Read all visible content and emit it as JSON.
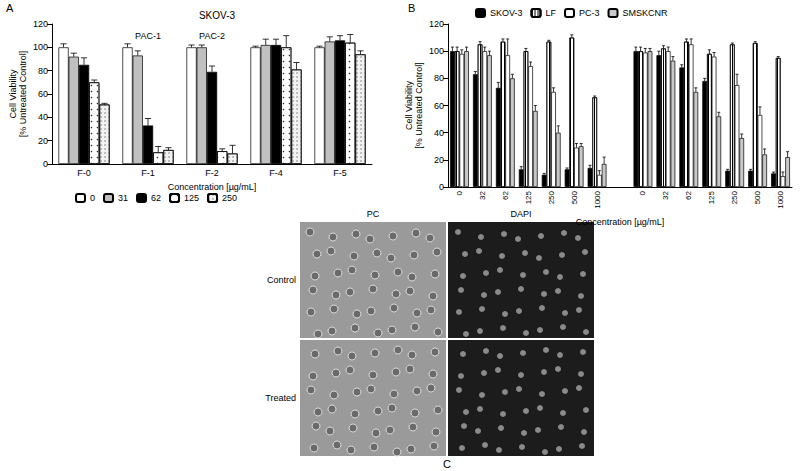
{
  "chart_data": [
    {
      "type": "bar",
      "panel_label": "A",
      "title": "SKOV-3",
      "x_label": "Concentration [µg/mL]",
      "y_label": "Cell Viability\n[% Untreated Control]",
      "categories": [
        "F-0",
        "F-1",
        "F-2",
        "F-4",
        "F-5"
      ],
      "series": [
        {
          "name": "0",
          "color": "#ffffff",
          "values": [
            100,
            100,
            100,
            100,
            100
          ],
          "errors": [
            3,
            3,
            2,
            1,
            1
          ]
        },
        {
          "name": "31",
          "color": "#c0c0c0",
          "values": [
            92,
            93,
            100,
            102,
            105
          ],
          "errors": [
            3,
            4,
            2,
            5,
            4
          ]
        },
        {
          "name": "62",
          "color": "#000000",
          "values": [
            85,
            33,
            79,
            102,
            106
          ],
          "errors": [
            6,
            6,
            5,
            5,
            4
          ]
        },
        {
          "name": "125",
          "color": "#ffffff",
          "values": [
            70,
            10,
            11,
            100,
            104
          ],
          "errors": [
            2,
            5,
            2,
            10,
            7
          ]
        },
        {
          "name": "250",
          "color": "#f2f2f2",
          "values": [
            51,
            12,
            9,
            81,
            94
          ],
          "errors": [
            1,
            2,
            7,
            6,
            3
          ]
        }
      ],
      "annotations": [
        {
          "text": "PAC-1",
          "category": "F-1"
        },
        {
          "text": "PAC-2",
          "category": "F-2"
        }
      ],
      "ylim": [
        0,
        120
      ],
      "yticks": [
        0,
        20,
        40,
        60,
        80,
        100,
        120
      ],
      "grid": false,
      "legend": "bottom"
    },
    {
      "type": "bar",
      "panel_label": "B",
      "x_label": "Concentration [µg/mL]",
      "y_label": "Cell Viability\n[% Untreated Control]",
      "categories": [
        "0",
        "32",
        "62",
        "125",
        "250",
        "500",
        "1000",
        null,
        "0",
        "32",
        "62",
        "125",
        "250",
        "500",
        "1000"
      ],
      "series": [
        {
          "name": "SKOV-3",
          "color": "#000000",
          "values": [
            100,
            83,
            73,
            13,
            9,
            13,
            14,
            null,
            100,
            97,
            88,
            78,
            12,
            12,
            10
          ],
          "errors": [
            3,
            2,
            4,
            2,
            1,
            1,
            2,
            null,
            3,
            3,
            2,
            2,
            1,
            1,
            1
          ]
        },
        {
          "name": "LF",
          "color": "#ffffff",
          "values": [
            100,
            105,
            107,
            100,
            107,
            110,
            66,
            null,
            100,
            102,
            107,
            98,
            105,
            106,
            95
          ],
          "errors": [
            3,
            2,
            2,
            2,
            1,
            2,
            1,
            null,
            3,
            2,
            2,
            3,
            1,
            1,
            1
          ]
        },
        {
          "name": "PC-3",
          "color": "#ffffff",
          "values": [
            98,
            100,
            97,
            89,
            70,
            29,
            9,
            null,
            99,
            100,
            105,
            96,
            75,
            53,
            8
          ],
          "errors": [
            3,
            3,
            12,
            3,
            3,
            3,
            3,
            null,
            3,
            3,
            4,
            3,
            8,
            6,
            3
          ]
        },
        {
          "name": "SMSKCNR",
          "color": "#c8c8c8",
          "values": [
            100,
            97,
            80,
            56,
            40,
            30,
            17,
            null,
            100,
            93,
            70,
            52,
            36,
            24,
            22
          ],
          "errors": [
            3,
            3,
            3,
            4,
            5,
            2,
            5,
            null,
            2,
            3,
            3,
            3,
            3,
            4,
            4
          ]
        }
      ],
      "ylim": [
        0,
        120
      ],
      "yticks": [
        0,
        20,
        40,
        60,
        80,
        100,
        120
      ],
      "grid": false,
      "legend": "top"
    }
  ],
  "image_panel": {
    "label": "C",
    "columns": [
      "PC",
      "DAPI"
    ],
    "rows": [
      "Control",
      "Treated"
    ]
  }
}
